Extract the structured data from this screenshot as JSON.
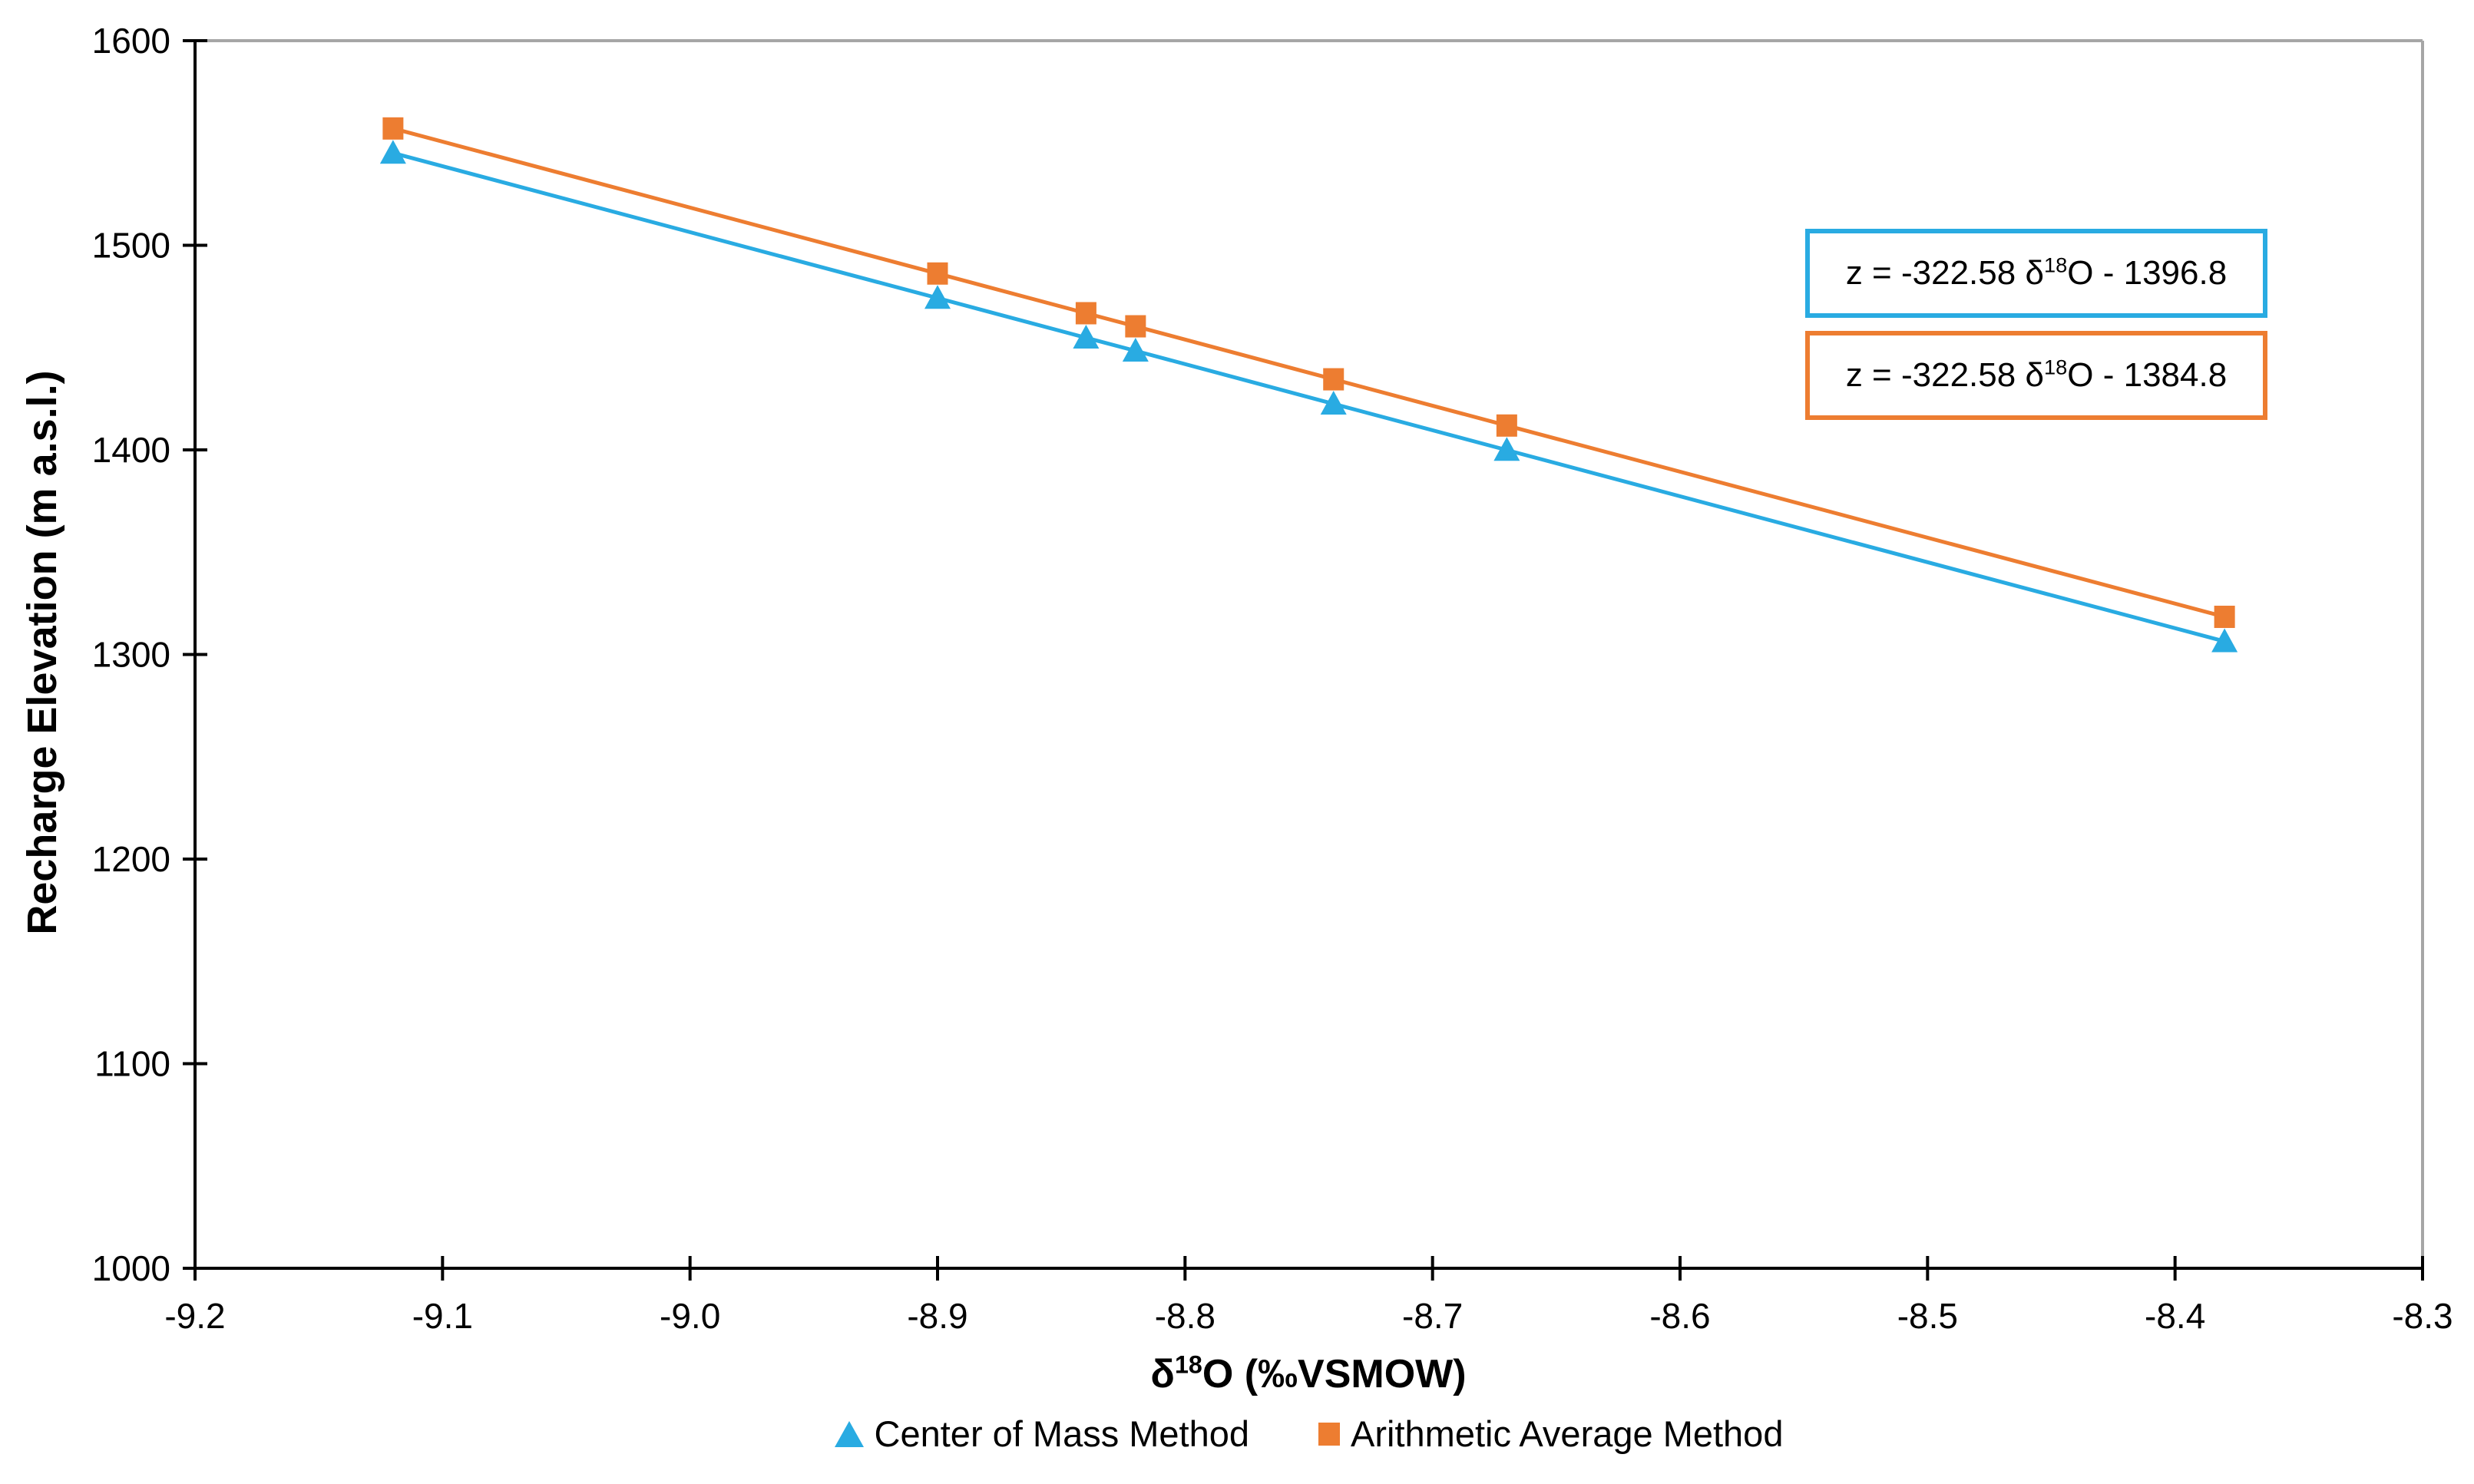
{
  "chart_data": {
    "type": "scatter",
    "title": "",
    "xlabel": {
      "pre": "δ",
      "sup": "18",
      "post": "O (‰VSMOW)"
    },
    "ylabel": "Recharge Elevation (m a.s.l.)",
    "xlim": [
      -9.2,
      -8.3
    ],
    "ylim": [
      1000,
      1600
    ],
    "xticks": [
      "-9.2",
      "-9.1",
      "-9.0",
      "-8.9",
      "-8.8",
      "-8.7",
      "-8.6",
      "-8.5",
      "-8.4",
      "-8.3"
    ],
    "yticks": [
      "1000",
      "1100",
      "1200",
      "1300",
      "1400",
      "1500",
      "1600"
    ],
    "grid": "off",
    "legend_position": "bottom-center",
    "x": [
      -9.12,
      -8.9,
      -8.84,
      -8.82,
      -8.74,
      -8.67,
      -8.38
    ],
    "series": [
      {
        "name": "Center of Mass Method",
        "marker": "triangle",
        "color": "#29ABE2",
        "values": [
          1545.1,
          1474.2,
          1454.8,
          1448.4,
          1422.5,
          1399.9,
          1306.4
        ]
      },
      {
        "name": "Arithmetic Average Method",
        "marker": "square",
        "color": "#ED7D31",
        "values": [
          1557.1,
          1486.2,
          1466.8,
          1460.4,
          1434.5,
          1411.9,
          1318.4
        ]
      }
    ],
    "annotations": [
      {
        "prefix": "z = -322.58 ",
        "delta": "δ",
        "sup": "18",
        "suffix": "O - 1396.8",
        "border_color": "#29ABE2"
      },
      {
        "prefix": "z = -322.58 ",
        "delta": "δ",
        "sup": "18",
        "suffix": "O - 1384.8",
        "border_color": "#ED7D31"
      }
    ],
    "colors": {
      "axis": "#000000",
      "plot_border": "#A6A6A6",
      "text": "#000000"
    }
  }
}
